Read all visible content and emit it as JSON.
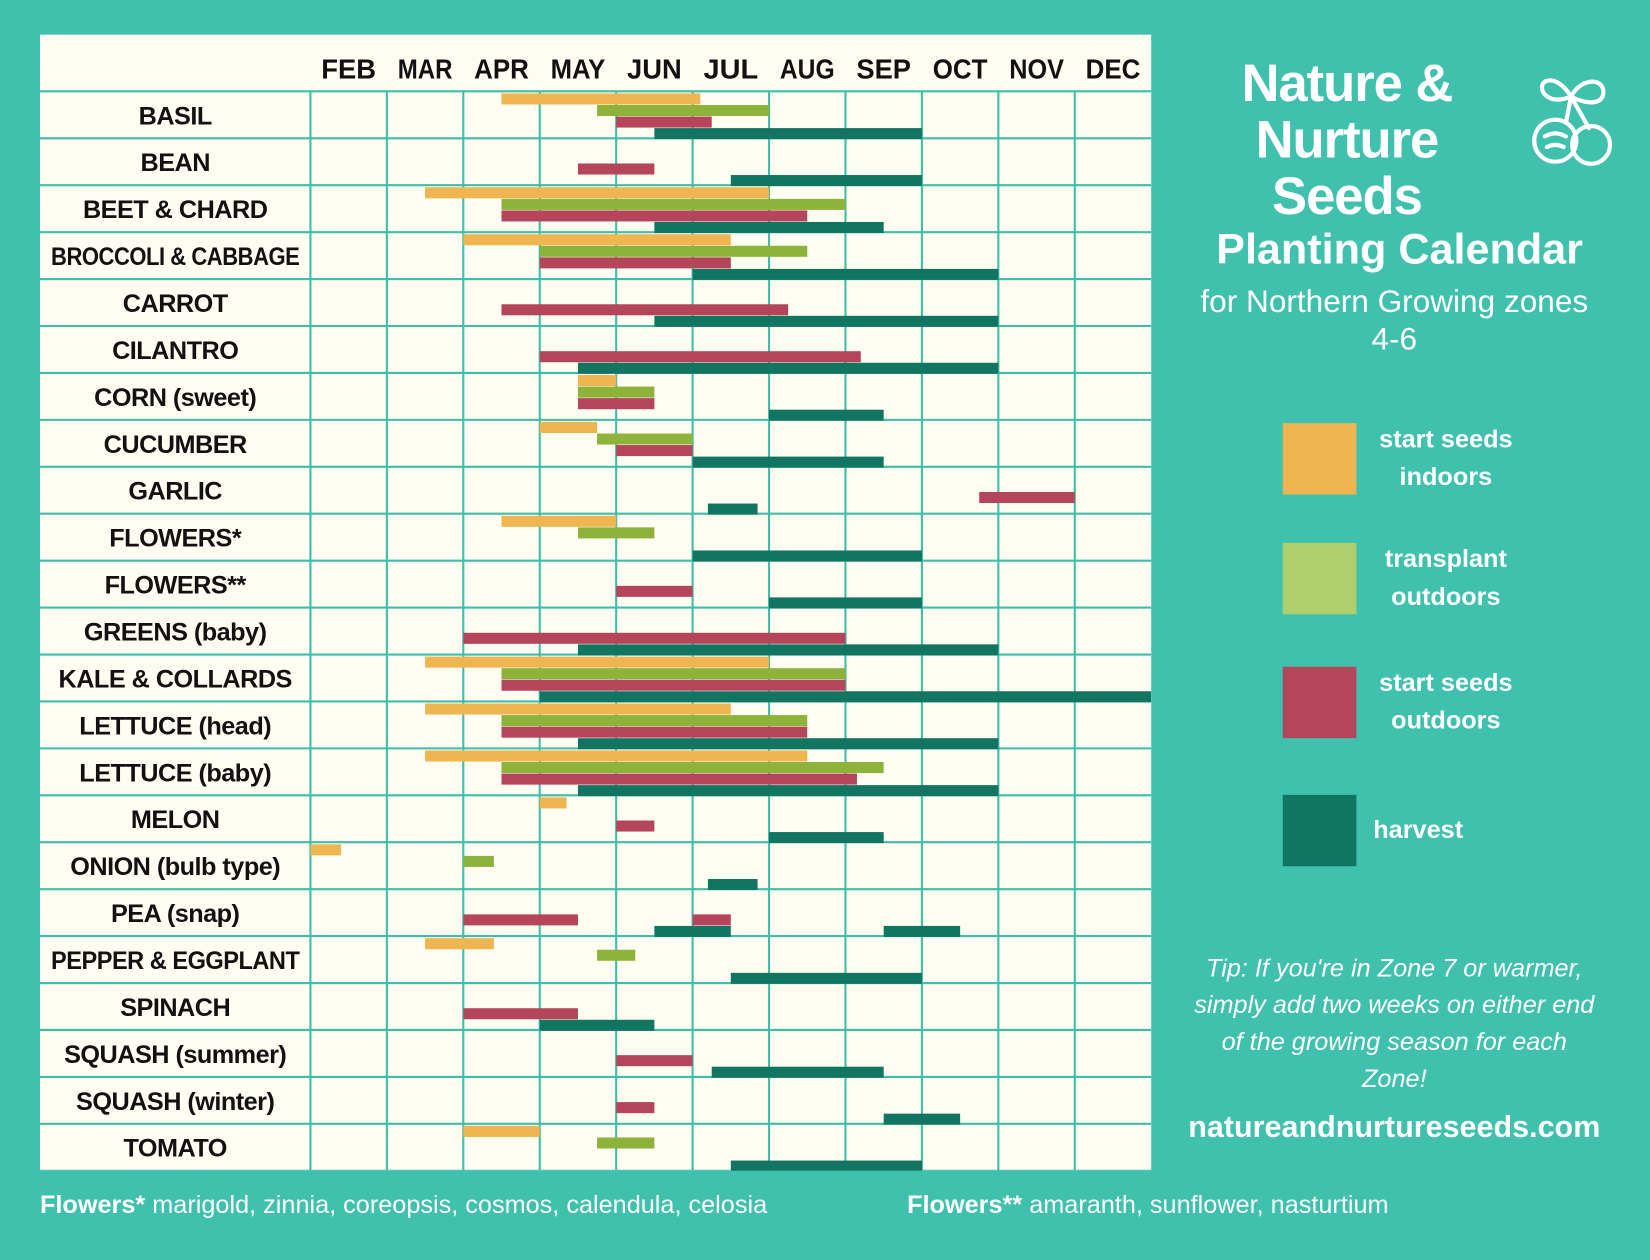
{
  "brand": {
    "line1": "Nature &",
    "line2": "Nurture Seeds",
    "logo_icon": "seed-cherry-logo-icon"
  },
  "title": "Planting Calendar",
  "subtitle": "for Northern Growing zones 4-6",
  "legend": [
    {
      "key": "indoors",
      "label": "start seeds indoors",
      "color": "#efb551"
    },
    {
      "key": "transplant",
      "label": "transplant outdoors",
      "color": "#aecf6c"
    },
    {
      "key": "outdoors",
      "label": "start seeds outdoors",
      "color": "#b5455a"
    },
    {
      "key": "harvest",
      "label": "harvest",
      "color": "#127562"
    }
  ],
  "tip": "Tip: If you're in Zone 7 or warmer, simply add two weeks on either end of the growing season for each Zone!",
  "url": "natureandnurtureseeds.com",
  "footnotes": [
    {
      "term": "Flowers*",
      "text": "marigold, zinnia, coreopsis, cosmos, calendula, celosia"
    },
    {
      "term": "Flowers**",
      "text": "amaranth, sunflower, nasturtium"
    }
  ],
  "chart_data": {
    "type": "gantt",
    "xlim": [
      2,
      13
    ],
    "months": [
      "FEB",
      "MAR",
      "APR",
      "MAY",
      "JUN",
      "JUL",
      "AUG",
      "SEP",
      "OCT",
      "NOV",
      "DEC"
    ],
    "colors": {
      "indoors": "#efb551",
      "transplant": "#8db33a",
      "outdoors": "#b5455a",
      "harvest": "#127562"
    },
    "grid": true,
    "crops": [
      {
        "name": "BASIL",
        "indoors": [
          [
            4.5,
            7.1
          ]
        ],
        "transplant": [
          [
            5.75,
            8
          ]
        ],
        "outdoors": [
          [
            6,
            7.25
          ]
        ],
        "harvest": [
          [
            6.5,
            10
          ]
        ]
      },
      {
        "name": "BEAN",
        "outdoors": [
          [
            5.5,
            6.5
          ]
        ],
        "harvest": [
          [
            7.5,
            10
          ]
        ]
      },
      {
        "name": "BEET & CHARD",
        "indoors": [
          [
            3.5,
            8
          ]
        ],
        "transplant": [
          [
            4.5,
            9
          ]
        ],
        "outdoors": [
          [
            4.5,
            8.5
          ]
        ],
        "harvest": [
          [
            6.5,
            9.5
          ]
        ]
      },
      {
        "name": "BROCCOLI & CABBAGE",
        "indoors": [
          [
            4,
            7.5
          ]
        ],
        "transplant": [
          [
            5,
            8.5
          ]
        ],
        "outdoors": [
          [
            5,
            7.5
          ]
        ],
        "harvest": [
          [
            7,
            11
          ]
        ]
      },
      {
        "name": "CARROT",
        "outdoors": [
          [
            4.5,
            8.25
          ]
        ],
        "harvest": [
          [
            6.5,
            11
          ]
        ]
      },
      {
        "name": "CILANTRO",
        "outdoors": [
          [
            5,
            9.2
          ]
        ],
        "harvest": [
          [
            5.5,
            11
          ]
        ]
      },
      {
        "name": "CORN (sweet)",
        "indoors": [
          [
            5.5,
            6
          ]
        ],
        "transplant": [
          [
            5.5,
            6.5
          ]
        ],
        "outdoors": [
          [
            5.5,
            6.5
          ]
        ],
        "harvest": [
          [
            8,
            9.5
          ]
        ]
      },
      {
        "name": "CUCUMBER",
        "indoors": [
          [
            5,
            5.75
          ]
        ],
        "transplant": [
          [
            5.75,
            7
          ]
        ],
        "outdoors": [
          [
            6,
            7
          ]
        ],
        "harvest": [
          [
            7,
            9.5
          ]
        ]
      },
      {
        "name": "GARLIC",
        "outdoors": [
          [
            10.75,
            12
          ]
        ],
        "harvest": [
          [
            7.2,
            7.85
          ]
        ]
      },
      {
        "name": "FLOWERS*",
        "indoors": [
          [
            4.5,
            6
          ]
        ],
        "transplant": [
          [
            5.5,
            6.5
          ]
        ],
        "harvest": [
          [
            7,
            10
          ]
        ]
      },
      {
        "name": "FLOWERS**",
        "outdoors": [
          [
            6,
            7
          ]
        ],
        "harvest": [
          [
            8,
            10
          ]
        ]
      },
      {
        "name": "GREENS (baby)",
        "outdoors": [
          [
            4,
            9
          ]
        ],
        "harvest": [
          [
            5.5,
            11
          ]
        ]
      },
      {
        "name": "KALE & COLLARDS",
        "indoors": [
          [
            3.5,
            8
          ]
        ],
        "transplant": [
          [
            4.5,
            9
          ]
        ],
        "outdoors": [
          [
            4.5,
            9
          ]
        ],
        "harvest": [
          [
            5,
            13
          ]
        ]
      },
      {
        "name": "LETTUCE (head)",
        "indoors": [
          [
            3.5,
            7.5
          ]
        ],
        "transplant": [
          [
            4.5,
            8.5
          ]
        ],
        "outdoors": [
          [
            4.5,
            8.5
          ]
        ],
        "harvest": [
          [
            5.5,
            11
          ]
        ]
      },
      {
        "name": "LETTUCE (baby)",
        "indoors": [
          [
            3.5,
            8.5
          ]
        ],
        "transplant": [
          [
            4.5,
            9.5
          ]
        ],
        "outdoors": [
          [
            4.5,
            9.15
          ]
        ],
        "harvest": [
          [
            5.5,
            11
          ]
        ]
      },
      {
        "name": "MELON",
        "indoors": [
          [
            5,
            5.35
          ]
        ],
        "outdoors": [
          [
            6,
            6.5
          ]
        ],
        "harvest": [
          [
            8,
            9.5
          ]
        ]
      },
      {
        "name": "ONION (bulb type)",
        "indoors": [
          [
            2,
            2.4
          ]
        ],
        "transplant": [
          [
            4,
            4.4
          ]
        ],
        "harvest": [
          [
            7.2,
            7.85
          ]
        ]
      },
      {
        "name": "PEA (snap)",
        "outdoors": [
          [
            4,
            5.5
          ],
          [
            7,
            7.5
          ]
        ],
        "harvest": [
          [
            6.5,
            7.5
          ],
          [
            9.5,
            10.5
          ]
        ]
      },
      {
        "name": "PEPPER & EGGPLANT",
        "indoors": [
          [
            3.5,
            4.4
          ]
        ],
        "transplant": [
          [
            5.75,
            6.25
          ]
        ],
        "harvest": [
          [
            7.5,
            10
          ]
        ]
      },
      {
        "name": "SPINACH",
        "outdoors": [
          [
            4,
            5.5
          ]
        ],
        "harvest": [
          [
            5,
            6.5
          ]
        ]
      },
      {
        "name": "SQUASH (summer)",
        "outdoors": [
          [
            6,
            7
          ]
        ],
        "harvest": [
          [
            7.25,
            9.5
          ]
        ]
      },
      {
        "name": "SQUASH (winter)",
        "outdoors": [
          [
            6,
            6.5
          ]
        ],
        "harvest": [
          [
            9.5,
            10.5
          ]
        ]
      },
      {
        "name": "TOMATO",
        "indoors": [
          [
            4,
            5
          ]
        ],
        "transplant": [
          [
            5.75,
            6.5
          ]
        ],
        "harvest": [
          [
            7.5,
            10
          ]
        ]
      }
    ]
  }
}
